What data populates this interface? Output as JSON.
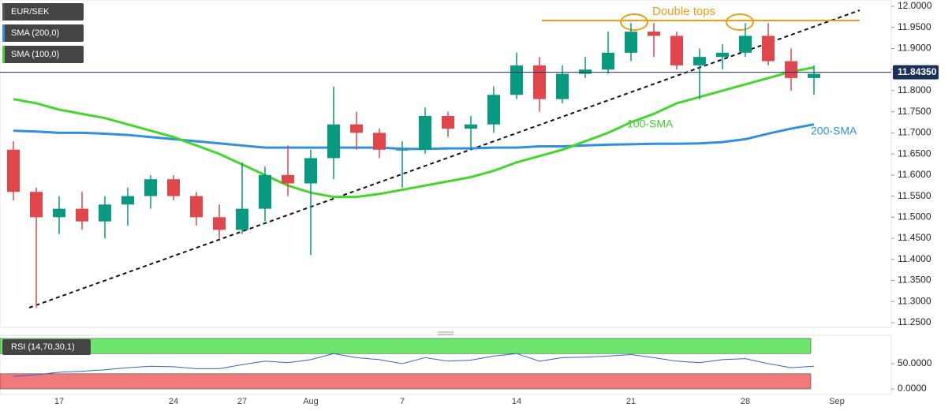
{
  "chart_data": [
    {
      "type": "candlestick",
      "title": "EUR/SEK",
      "categories": [
        null,
        null,
        "17",
        null,
        null,
        null,
        null,
        "24",
        null,
        null,
        "27",
        null,
        null,
        "Aug",
        null,
        null,
        null,
        "7",
        null,
        null,
        null,
        null,
        "14",
        null,
        null,
        null,
        null,
        "21",
        null,
        null,
        null,
        null,
        "28",
        null,
        null,
        null,
        "Sep"
      ],
      "open": [
        11.66,
        11.56,
        11.5,
        11.52,
        11.49,
        11.53,
        11.55,
        11.59,
        11.55,
        11.5,
        11.47,
        11.52,
        11.6,
        11.58,
        11.64,
        11.72,
        11.7,
        11.66,
        11.66,
        11.74,
        11.71,
        11.72,
        11.79,
        11.86,
        11.78,
        11.84,
        11.85,
        11.89,
        11.94,
        11.93,
        11.86,
        11.88,
        11.89,
        11.93,
        11.87,
        11.83,
        null
      ],
      "high": [
        11.68,
        11.57,
        11.55,
        11.56,
        11.55,
        11.57,
        11.6,
        11.6,
        11.56,
        11.53,
        11.63,
        11.62,
        11.67,
        11.66,
        11.81,
        11.75,
        11.71,
        11.68,
        11.76,
        11.75,
        11.74,
        11.81,
        11.89,
        11.88,
        11.86,
        11.88,
        11.94,
        11.96,
        11.96,
        11.94,
        11.9,
        11.91,
        11.96,
        11.96,
        11.9,
        11.86,
        null
      ],
      "low": [
        11.54,
        11.285,
        11.46,
        11.47,
        11.45,
        11.48,
        11.52,
        11.54,
        11.48,
        11.45,
        11.46,
        11.49,
        11.55,
        11.41,
        11.59,
        11.66,
        11.64,
        11.57,
        11.65,
        11.69,
        11.66,
        11.7,
        11.78,
        11.75,
        11.77,
        11.83,
        11.84,
        11.87,
        11.88,
        11.85,
        11.78,
        11.85,
        11.88,
        11.86,
        11.8,
        11.79,
        null
      ],
      "close": [
        11.56,
        11.5,
        11.52,
        11.49,
        11.53,
        11.55,
        11.59,
        11.55,
        11.5,
        11.47,
        11.52,
        11.6,
        11.58,
        11.64,
        11.72,
        11.7,
        11.66,
        11.66,
        11.74,
        11.71,
        11.72,
        11.79,
        11.86,
        11.78,
        11.84,
        11.85,
        11.89,
        11.94,
        11.93,
        11.86,
        11.88,
        11.89,
        11.93,
        11.87,
        11.83,
        11.84,
        null
      ],
      "up_color": "#089981",
      "down_color": "#e0474c",
      "series": [
        {
          "name": "SMA (200,0)",
          "color": "#2f8fe0",
          "values": [
            11.705,
            11.703,
            11.7,
            11.7,
            11.698,
            11.695,
            11.69,
            11.685,
            11.68,
            11.675,
            11.67,
            11.665,
            11.665,
            11.665,
            11.665,
            11.665,
            11.665,
            11.662,
            11.662,
            11.663,
            11.663,
            11.665,
            11.665,
            11.668,
            11.668,
            11.67,
            11.672,
            11.673,
            11.674,
            11.674,
            11.675,
            11.678,
            11.685,
            11.698,
            11.71,
            11.72,
            null
          ]
        },
        {
          "name": "SMA (100,0)",
          "color": "#44d62c",
          "values": [
            11.78,
            11.77,
            11.755,
            11.745,
            11.735,
            11.72,
            11.705,
            11.69,
            11.67,
            11.65,
            11.625,
            11.6,
            11.575,
            11.558,
            11.548,
            11.548,
            11.555,
            11.565,
            11.575,
            11.585,
            11.595,
            11.61,
            11.63,
            11.645,
            11.66,
            11.68,
            11.7,
            11.725,
            11.745,
            11.77,
            11.785,
            11.8,
            11.815,
            11.83,
            11.845,
            11.855,
            null
          ]
        }
      ],
      "current_price": {
        "value": 11.8435,
        "label": "11.84350"
      },
      "annotations": [
        "Double tops",
        "100-SMA",
        "200-SMA"
      ],
      "ylim": [
        11.2387,
        12.015
      ],
      "yticks": [
        {
          "value": 11.25,
          "label": "11.2500"
        },
        {
          "value": 11.3,
          "label": "11.3000"
        },
        {
          "value": 11.35,
          "label": "11.3500"
        },
        {
          "value": 11.4,
          "label": "11.4000"
        },
        {
          "value": 11.45,
          "label": "11.4500"
        },
        {
          "value": 11.5,
          "label": "11.5000"
        },
        {
          "value": 11.55,
          "label": "11.5500"
        },
        {
          "value": 11.6,
          "label": "11.6000"
        },
        {
          "value": 11.65,
          "label": "11.6500"
        },
        {
          "value": 11.7,
          "label": "11.7000"
        },
        {
          "value": 11.75,
          "label": "11.7500"
        },
        {
          "value": 11.8,
          "label": "11.8000"
        },
        {
          "value": 11.85,
          "label": "11.8500"
        },
        {
          "value": 11.9,
          "label": "11.9000"
        },
        {
          "value": 11.95,
          "label": "11.9500"
        },
        {
          "value": 12.0,
          "label": "12.0000"
        }
      ]
    },
    {
      "type": "line",
      "series": [
        {
          "name": "RSI (14,70,30,1)",
          "color": "#3a5fcd",
          "values": [
            25,
            28,
            33,
            35,
            38,
            42,
            45,
            44,
            40,
            40,
            48,
            55,
            52,
            58,
            70,
            62,
            58,
            50,
            62,
            55,
            57,
            65,
            70,
            55,
            62,
            63,
            65,
            68,
            62,
            55,
            52,
            58,
            60,
            50,
            42,
            45,
            null
          ]
        }
      ],
      "bands": [
        {
          "range": [
            70,
            100
          ],
          "color": "#6ee66e"
        },
        {
          "range": [
            0,
            30
          ],
          "color": "#f07a7a"
        }
      ],
      "ylim": [
        -10.9,
        106.25
      ],
      "yticks": [
        {
          "value": 0,
          "label": "0.0000"
        },
        {
          "value": 50,
          "label": "50.0000"
        }
      ]
    }
  ]
}
